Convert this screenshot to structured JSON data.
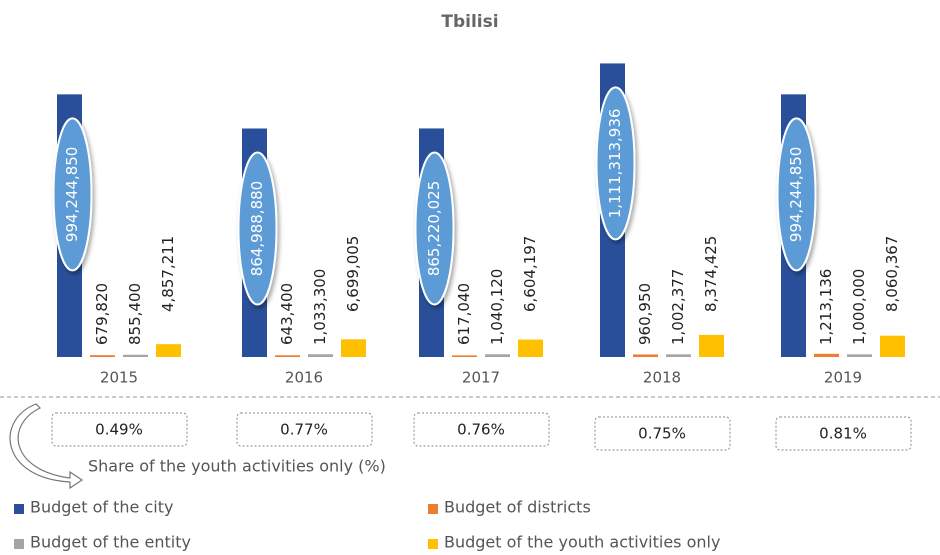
{
  "chart_data": {
    "type": "bar",
    "title": "Tbilisi",
    "categories": [
      "2015",
      "2016",
      "2017",
      "2018",
      "2019"
    ],
    "ylim": [
      0,
      1200000000
    ],
    "y2lim": [
      0,
      120000000
    ],
    "series": [
      {
        "name": "Budget of the city",
        "color": "#2a4f9a",
        "values": [
          994244850,
          864988880,
          865220025,
          1111313936,
          994244850
        ],
        "value_labels": [
          "994,244,850",
          "864,988,880",
          "865,220,025",
          "1,111,313,936",
          "994,244,850"
        ]
      },
      {
        "name": "Budget of districts",
        "color": "#ed7d31",
        "axis": "y2",
        "values": [
          679820,
          643400,
          617040,
          960950,
          1213136
        ],
        "value_labels": [
          "679,820",
          "643,400",
          "617,040",
          "960,950",
          "1,213,136"
        ]
      },
      {
        "name": "Budget of the entity",
        "color": "#a5a5a5",
        "axis": "y2",
        "values": [
          855400,
          1033300,
          1040120,
          1002377,
          1000000
        ],
        "value_labels": [
          "855,400",
          "1,033,300",
          "1,040,120",
          "1,002,377",
          "1,000,000"
        ]
      },
      {
        "name": "Budget of the youth activities only",
        "color": "#ffc000",
        "axis": "y2",
        "values": [
          4857211,
          6699005,
          6604197,
          8374425,
          8060367
        ],
        "value_labels": [
          "4,857,211",
          "6,699,005",
          "6,604,197",
          "8,374,425",
          "8,060,367"
        ]
      }
    ],
    "share": {
      "name": "Share of the youth activities only (%)",
      "values": [
        0.49,
        0.77,
        0.76,
        0.75,
        0.81
      ],
      "value_labels": [
        "0.49%",
        "0.77%",
        "0.76%",
        "0.75%",
        "0.81%"
      ]
    }
  }
}
